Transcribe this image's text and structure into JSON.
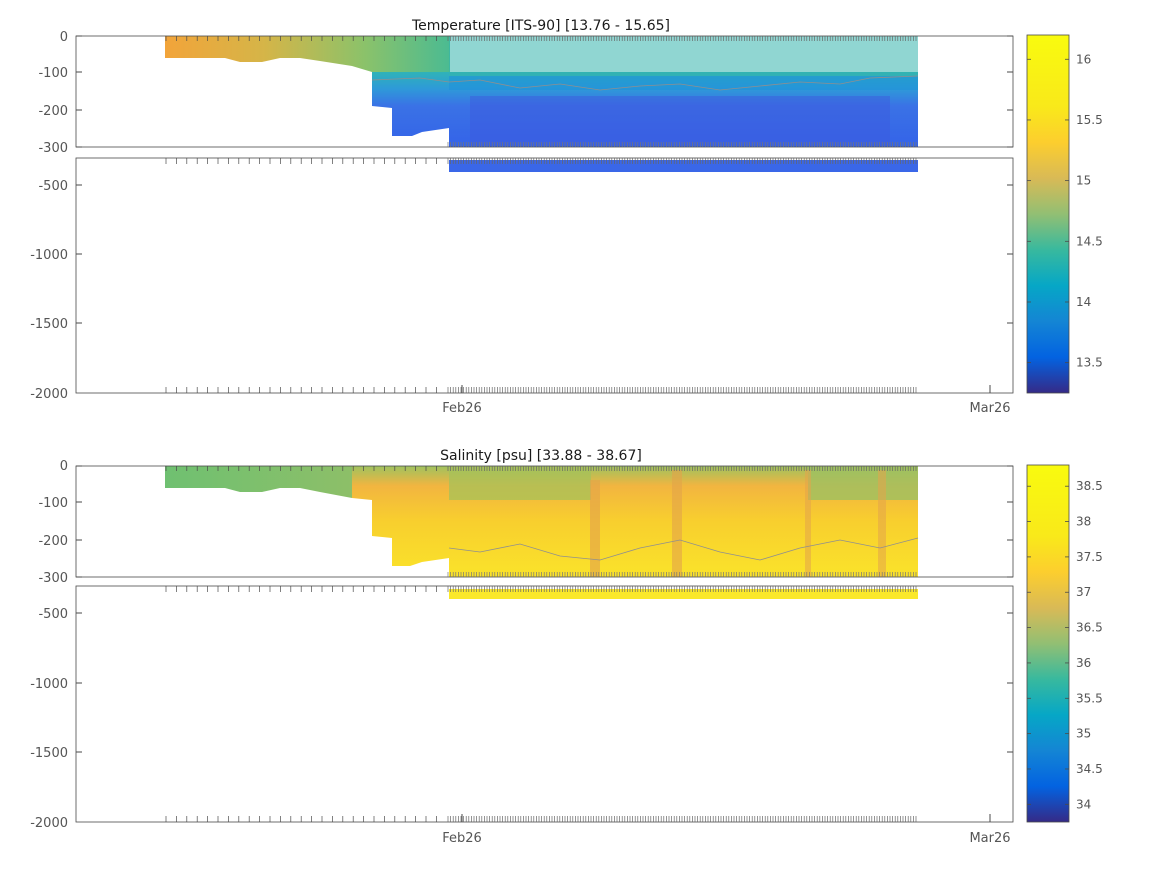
{
  "chart_data": [
    {
      "type": "heatmap",
      "title": "Temperature [ITS-90]   [13.76 - 15.65]",
      "xlabel": "",
      "ylabel": "",
      "x_ticks": [
        "Feb26",
        "Mar26"
      ],
      "y_ticks_upper": [
        "0",
        "-100",
        "-200",
        "-300"
      ],
      "y_ticks_lower": [
        "-500",
        "-1000",
        "-1500",
        "-2000"
      ],
      "ylim_upper": [
        -300,
        0
      ],
      "ylim_lower": [
        -2000,
        -300
      ],
      "colorbar": {
        "range": [
          13.25,
          16.2
        ],
        "ticks": [
          "13.5",
          "14",
          "14.5",
          "15",
          "15.5",
          "16"
        ]
      },
      "data_range": [
        13.76,
        15.65
      ],
      "colormap": "parula",
      "grid": false
    },
    {
      "type": "heatmap",
      "title": "Salinity [psu]   [33.88 - 38.67]",
      "xlabel": "",
      "ylabel": "",
      "x_ticks": [
        "Feb26",
        "Mar26"
      ],
      "y_ticks_upper": [
        "0",
        "-100",
        "-200",
        "-300"
      ],
      "y_ticks_lower": [
        "-500",
        "-1000",
        "-1500",
        "-2000"
      ],
      "ylim_upper": [
        -300,
        0
      ],
      "ylim_lower": [
        -2000,
        -300
      ],
      "colorbar": {
        "range": [
          33.75,
          38.8
        ],
        "ticks": [
          "34",
          "34.5",
          "35",
          "35.5",
          "36",
          "36.5",
          "37",
          "37.5",
          "38",
          "38.5"
        ]
      },
      "data_range": [
        33.88,
        38.67
      ],
      "colormap": "parula",
      "grid": false
    }
  ]
}
